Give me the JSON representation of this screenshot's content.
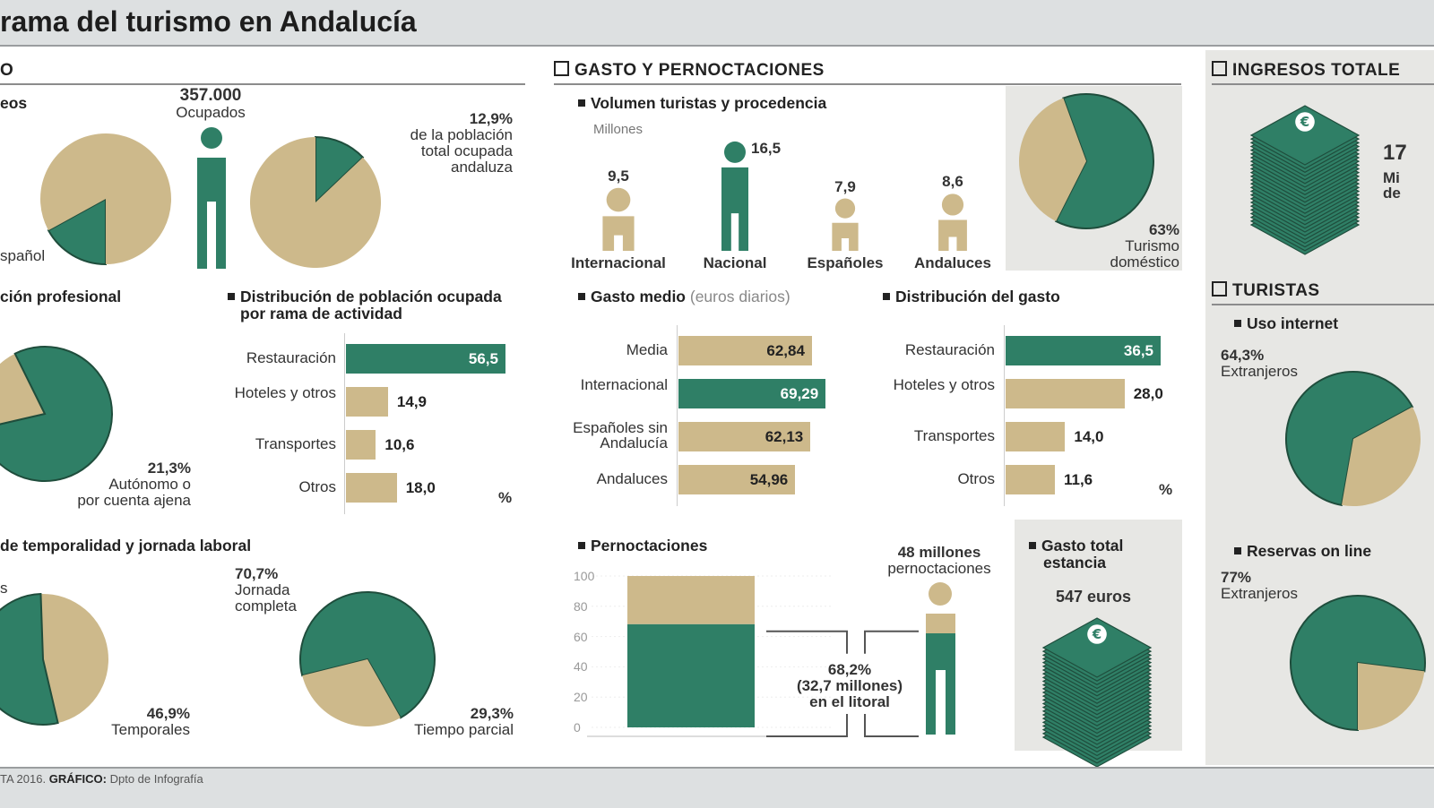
{
  "title": "rama del turismo en Andalucía",
  "colors": {
    "green": "#2f7f66",
    "tan": "#cdb98b",
    "panel": "#e7e7e4",
    "dark": "#1f4d3c"
  },
  "sections": {
    "empleo": "O",
    "gasto": "GASTO Y PERNOCTACIONES",
    "ingresos": "INGRESOS TOTALE",
    "turistas": "TURISTAS"
  },
  "empleo": {
    "subtitle_cut": "eos",
    "pie_label_cut": "spañol",
    "ocupados_value": "357.000",
    "ocupados_label": "Ocupados",
    "share_pct": "12,9%",
    "share_text": [
      "de la población",
      "total ocupada",
      "andaluza"
    ],
    "profesional_title": "ción profesional",
    "profesional_pct": "21,3%",
    "profesional_text": [
      "Autónomo o",
      "por cuenta ajena"
    ],
    "temporalidad_title": "de temporalidad y jornada laboral",
    "temporalidad_cut": "s",
    "temporales_pct": "46,9%",
    "temporales_label": "Temporales",
    "completa_pct": "70,7%",
    "completa_label": [
      "Jornada",
      "completa"
    ],
    "parcial_pct": "29,3%",
    "parcial_label": "Tiempo parcial"
  },
  "chart_data": [
    {
      "type": "pie",
      "title": "",
      "slices": [
        {
          "label": "…español",
          "value": 17,
          "color": "green"
        },
        {
          "label": "",
          "value": 83,
          "color": "tan"
        }
      ]
    },
    {
      "type": "pie",
      "title": "",
      "slices": [
        {
          "label": "de la población total ocupada andaluza",
          "value": 12.9,
          "color": "green"
        },
        {
          "label": "",
          "value": 87.1,
          "color": "tan"
        }
      ]
    },
    {
      "type": "pie",
      "title": "ción profesional",
      "slices": [
        {
          "label": "Autónomo o por cuenta ajena",
          "value": 21.3,
          "color": "tan"
        },
        {
          "label": "",
          "value": 78.7,
          "color": "green"
        }
      ]
    },
    {
      "type": "pie",
      "title": "de temporalidad y jornada laboral",
      "slices": [
        {
          "label": "Temporales",
          "value": 46.9,
          "color": "tan"
        },
        {
          "label": "",
          "value": 53.1,
          "color": "green"
        }
      ]
    },
    {
      "type": "pie",
      "title": "",
      "slices": [
        {
          "label": "Jornada completa",
          "value": 70.7,
          "color": "green"
        },
        {
          "label": "Tiempo parcial",
          "value": 29.3,
          "color": "tan"
        }
      ]
    },
    {
      "type": "bar",
      "title": "Distribución de población ocupada por rama de actividad",
      "unit": "%",
      "categories": [
        "Restauración",
        "Hoteles y otros",
        "Transportes",
        "Otros"
      ],
      "values": [
        56.5,
        14.9,
        10.6,
        18.0
      ],
      "labels": [
        "56,5",
        "14,9",
        "10,6",
        "18,0"
      ]
    },
    {
      "type": "bar",
      "title": "Volumen turistas y procedencia",
      "unit": "Millones",
      "categories": [
        "Internacional",
        "Nacional",
        "Españoles",
        "Andaluces"
      ],
      "values": [
        9.5,
        16.5,
        7.9,
        8.6
      ],
      "labels": [
        "9,5",
        "16,5",
        "7,9",
        "8,6"
      ]
    },
    {
      "type": "pie",
      "title": "",
      "slices": [
        {
          "label": "Turismo doméstico",
          "value": 63,
          "color": "green"
        },
        {
          "label": "",
          "value": 37,
          "color": "tan"
        }
      ]
    },
    {
      "type": "bar",
      "title": "Gasto medio",
      "unit": "euros diarios",
      "categories": [
        "Media",
        "Internacional",
        "Españoles sin Andalucía",
        "Andaluces"
      ],
      "values": [
        62.84,
        69.29,
        62.13,
        54.96
      ],
      "labels": [
        "62,84",
        "69,29",
        "62,13",
        "54,96"
      ]
    },
    {
      "type": "bar",
      "title": "Distribución del gasto",
      "unit": "%",
      "categories": [
        "Restauración",
        "Hoteles y otros",
        "Transportes",
        "Otros"
      ],
      "values": [
        36.5,
        28.0,
        14.0,
        11.6
      ],
      "labels": [
        "36,5",
        "28,0",
        "14,0",
        "11,6"
      ]
    },
    {
      "type": "bar",
      "title": "Pernoctaciones",
      "ylim": [
        0,
        100
      ],
      "yticks": [
        "100",
        "80",
        "60",
        "40",
        "20",
        "0"
      ],
      "stack": [
        {
          "label": "en el litoral",
          "value": 68.2,
          "color": "green"
        },
        {
          "label": "",
          "value": 31.8,
          "color": "tan"
        }
      ]
    },
    {
      "type": "pie",
      "title": "Uso internet",
      "slices": [
        {
          "label": "Extranjeros",
          "value": 64.3,
          "color": "green"
        },
        {
          "label": "",
          "value": 35.7,
          "color": "tan"
        }
      ]
    },
    {
      "type": "pie",
      "title": "Reservas on line",
      "slices": [
        {
          "label": "Extranjeros",
          "value": 77,
          "color": "green"
        },
        {
          "label": "",
          "value": 23,
          "color": "tan"
        }
      ]
    }
  ],
  "gasto": {
    "volumen_title": "Volumen turistas y procedencia",
    "volumen_unit": "Millones",
    "domestico_pct": "63%",
    "domestico_label": [
      "Turismo",
      "doméstico"
    ],
    "gasto_medio_title": "Gasto medio",
    "gasto_medio_unit": "(euros diarios)",
    "distribucion_title": "Distribución del gasto",
    "pernoctaciones_title": "Pernoctaciones",
    "pernoc_total": [
      "48 millones",
      "pernoctaciones"
    ],
    "litoral": [
      "68,2%",
      "(32,7 millones)",
      "en el litoral"
    ],
    "gasto_total_title": [
      "Gasto total",
      "estancia"
    ],
    "gasto_total_value": "547 euros"
  },
  "ingresos": {
    "value_cut": "17",
    "unit_cut": [
      "Mi",
      "de"
    ]
  },
  "turistas": {
    "internet_title": "Uso internet",
    "internet_pct": "64,3%",
    "internet_label": "Extranjeros",
    "reservas_title": "Reservas on line",
    "reservas_pct": "77%",
    "reservas_label": "Extranjeros"
  },
  "footer": {
    "source_cut": "TA 2016.",
    "grafico_label": "GRÁFICO:",
    "grafico_value": "Dpto de Infografía"
  }
}
